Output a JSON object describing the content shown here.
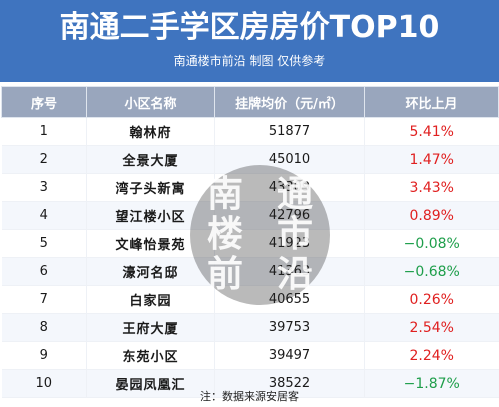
{
  "header": {
    "title": "南通二手学区房房价TOP10",
    "subtitle": "南通楼市前沿 制图 仅供参考"
  },
  "table": {
    "columns": [
      "序号",
      "小区名称",
      "挂牌均价（元/㎡）",
      "环比上月"
    ],
    "rows": [
      {
        "rank": "1",
        "name": "翰林府",
        "price": "51877",
        "change": "5.41%",
        "direction": "up"
      },
      {
        "rank": "2",
        "name": "全景大厦",
        "price": "45010",
        "change": "1.47%",
        "direction": "up"
      },
      {
        "rank": "3",
        "name": "湾子头新寓",
        "price": "43309",
        "change": "3.43%",
        "direction": "up"
      },
      {
        "rank": "4",
        "name": "望江楼小区",
        "price": "42796",
        "change": "0.89%",
        "direction": "up"
      },
      {
        "rank": "5",
        "name": "文峰怡景苑",
        "price": "41923",
        "change": "−0.08%",
        "direction": "down"
      },
      {
        "rank": "6",
        "name": "濠河名邸",
        "price": "41363",
        "change": "−0.68%",
        "direction": "down"
      },
      {
        "rank": "7",
        "name": "白家园",
        "price": "40655",
        "change": "0.26%",
        "direction": "up"
      },
      {
        "rank": "8",
        "name": "王府大厦",
        "price": "39753",
        "change": "2.54%",
        "direction": "up"
      },
      {
        "rank": "9",
        "name": "东苑小区",
        "price": "39497",
        "change": "2.24%",
        "direction": "up"
      },
      {
        "rank": "10",
        "name": "晏园凤凰汇",
        "price": "38522",
        "change": "−1.87%",
        "direction": "down"
      }
    ]
  },
  "watermark": {
    "chars": [
      "南",
      "通",
      "楼",
      "市",
      "前",
      "沿"
    ]
  },
  "footer": {
    "note": "注：数据来源安居客"
  },
  "colors": {
    "banner": "#3f74bf",
    "header_row": "#99a6bd",
    "up": "#e02020",
    "down": "#1e9e4a"
  }
}
